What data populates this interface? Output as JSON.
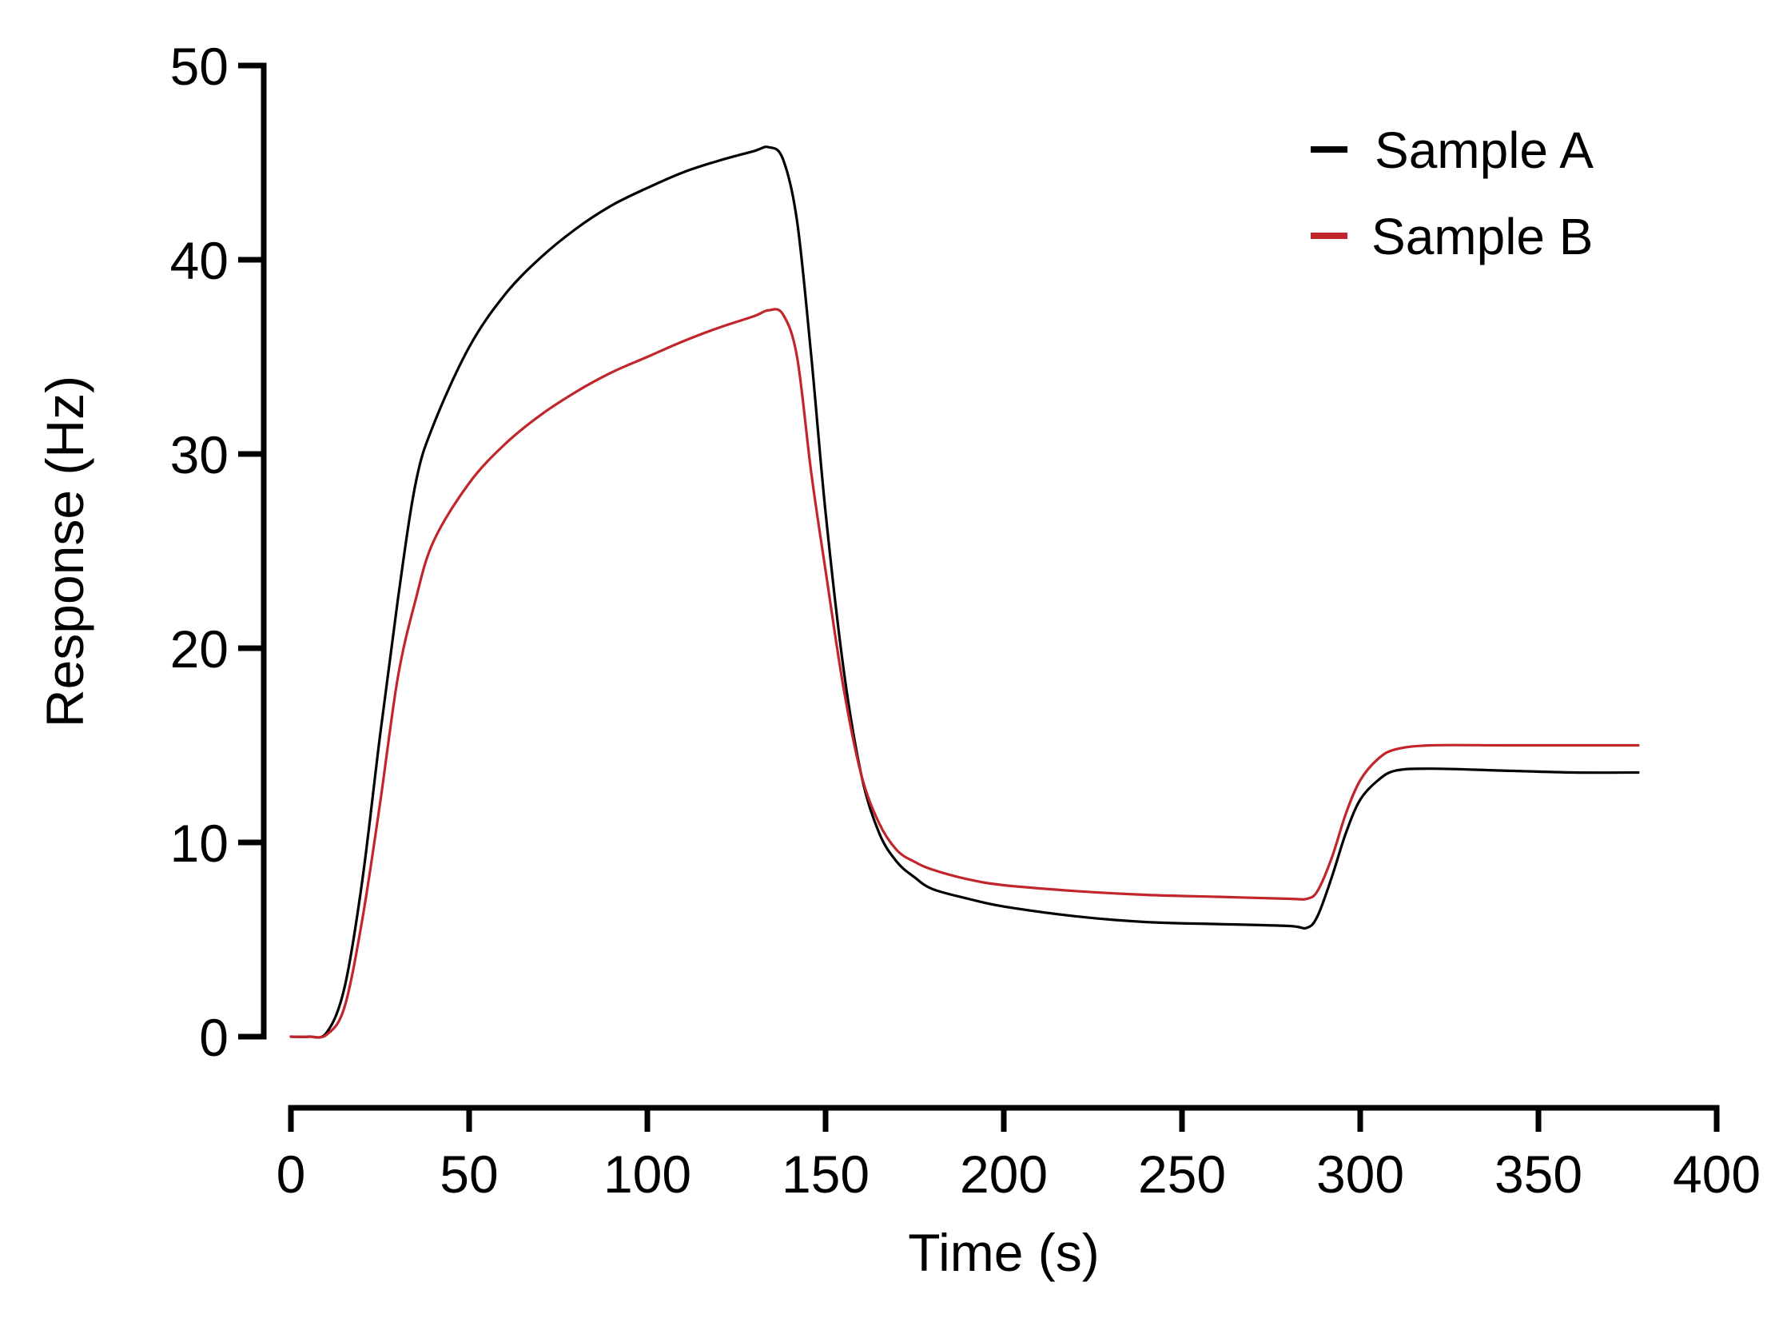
{
  "chart_data": {
    "type": "line",
    "title": "",
    "xlabel": "Time (s)",
    "ylabel": "Response (Hz)",
    "xlim": [
      0,
      400
    ],
    "ylim": [
      0,
      50
    ],
    "xticks": [
      0,
      50,
      100,
      150,
      200,
      250,
      300,
      350,
      400
    ],
    "yticks": [
      0,
      10,
      20,
      30,
      40,
      50
    ],
    "grid": false,
    "legend_position": "top-right",
    "series": [
      {
        "name": "Sample A",
        "color": "#000000",
        "x": [
          0,
          5,
          10,
          15,
          20,
          25,
          30,
          35,
          40,
          50,
          60,
          70,
          80,
          90,
          100,
          110,
          120,
          130,
          134,
          138,
          142,
          146,
          150,
          155,
          160,
          165,
          170,
          175,
          180,
          190,
          200,
          220,
          240,
          260,
          280,
          285,
          288,
          292,
          296,
          300,
          305,
          310,
          320,
          340,
          360,
          378
        ],
        "y": [
          0,
          0,
          0.2,
          2.5,
          8,
          15.5,
          22.5,
          28.5,
          31.5,
          35.5,
          38.2,
          40.1,
          41.6,
          42.8,
          43.7,
          44.5,
          45.1,
          45.6,
          45.8,
          45.2,
          42,
          35,
          27,
          19,
          13.5,
          10.5,
          9,
          8.2,
          7.6,
          7.1,
          6.7,
          6.2,
          5.9,
          5.8,
          5.7,
          5.6,
          6.2,
          8.2,
          10.5,
          12.2,
          13.2,
          13.7,
          13.8,
          13.7,
          13.6,
          13.6
        ]
      },
      {
        "name": "Sample B",
        "color": "#c0262b",
        "x": [
          0,
          5,
          10,
          15,
          20,
          25,
          30,
          35,
          40,
          50,
          60,
          70,
          80,
          90,
          100,
          110,
          120,
          130,
          134,
          138,
          142,
          146,
          150,
          155,
          160,
          165,
          170,
          175,
          180,
          190,
          200,
          220,
          240,
          260,
          280,
          285,
          288,
          292,
          296,
          300,
          305,
          310,
          320,
          340,
          360,
          378
        ],
        "y": [
          0,
          0,
          0.1,
          1.5,
          6,
          12,
          18.5,
          22.5,
          25.5,
          28.5,
          30.5,
          32,
          33.2,
          34.2,
          35,
          35.8,
          36.5,
          37.1,
          37.4,
          37.2,
          35,
          29,
          24,
          18,
          13.5,
          11,
          9.6,
          9,
          8.6,
          8.1,
          7.8,
          7.5,
          7.3,
          7.2,
          7.1,
          7.1,
          7.5,
          9.2,
          11.5,
          13.2,
          14.3,
          14.8,
          15,
          15,
          15,
          15
        ]
      }
    ]
  }
}
